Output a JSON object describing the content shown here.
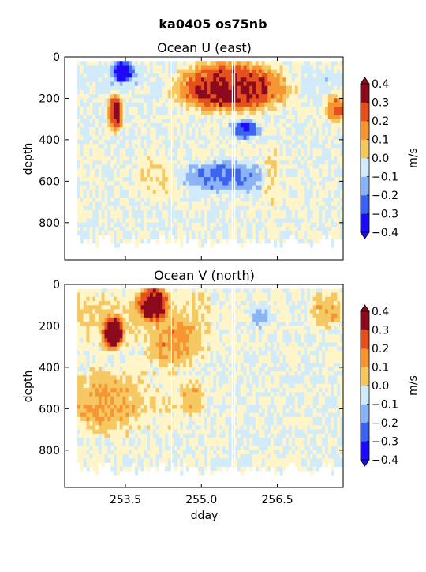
{
  "figure": {
    "suptitle": "ka0405 os75nb"
  },
  "colorbar": {
    "label": "m/s",
    "levels": [
      -0.4,
      -0.3,
      -0.2,
      -0.1,
      0.0,
      0.1,
      0.2,
      0.3,
      0.4
    ],
    "tick_labels": [
      "−0.4",
      "−0.3",
      "−0.2",
      "−0.1",
      "0.0",
      "0.1",
      "0.2",
      "0.3",
      "0.4"
    ],
    "colors": [
      "#1e0af5",
      "#3c64f0",
      "#8cb4f5",
      "#d2ebfa",
      "#fff5c8",
      "#f5c864",
      "#f59632",
      "#e6501e",
      "#8c0a1e"
    ]
  },
  "chart_data": [
    {
      "type": "heatmap",
      "title": "Ocean U (east)",
      "xlabel": "",
      "ylabel": "depth",
      "xlim": [
        252.3,
        257.8
      ],
      "ylim": [
        980,
        0
      ],
      "x_ticks": [
        253.5,
        255.0,
        256.5
      ],
      "x_tick_labels": [
        "",
        "",
        ""
      ],
      "y_ticks": [
        0,
        200,
        400,
        600,
        800
      ],
      "y_tick_labels": [
        "0",
        "200",
        "400",
        "600",
        "800"
      ],
      "features": [
        {
          "x": [
            254.5,
            256.7
          ],
          "y": [
            40,
            250
          ],
          "value": 0.45
        },
        {
          "x": [
            253.2,
            253.4
          ],
          "y": [
            190,
            350
          ],
          "value": 0.4
        },
        {
          "x": [
            253.3,
            253.6
          ],
          "y": [
            30,
            110
          ],
          "value": -0.4
        },
        {
          "x": [
            255.6,
            256.1
          ],
          "y": [
            320,
            380
          ],
          "value": -0.3
        },
        {
          "x": [
            254.7,
            256.2
          ],
          "y": [
            520,
            640
          ],
          "value": -0.2
        },
        {
          "x": [
            253.8,
            254.4
          ],
          "y": [
            480,
            680
          ],
          "value": 0.1
        },
        {
          "x": [
            256.3,
            256.5
          ],
          "y": [
            440,
            720
          ],
          "value": 0.1
        },
        {
          "x": [
            257.5,
            257.8
          ],
          "y": [
            200,
            300
          ],
          "value": 0.3
        }
      ]
    },
    {
      "type": "heatmap",
      "title": "Ocean V (north)",
      "xlabel": "dday",
      "ylabel": "depth",
      "xlim": [
        252.3,
        257.8
      ],
      "ylim": [
        980,
        0
      ],
      "x_ticks": [
        253.5,
        255.0,
        256.5
      ],
      "x_tick_labels": [
        "253.5",
        "255.0",
        "256.5"
      ],
      "y_ticks": [
        0,
        200,
        400,
        600,
        800
      ],
      "y_tick_labels": [
        "0",
        "200",
        "400",
        "600",
        "800"
      ],
      "features": [
        {
          "x": [
            253.1,
            253.4
          ],
          "y": [
            170,
            300
          ],
          "value": 0.45
        },
        {
          "x": [
            253.8,
            254.3
          ],
          "y": [
            20,
            160
          ],
          "value": 0.4
        },
        {
          "x": [
            254.0,
            255.0
          ],
          "y": [
            200,
            380
          ],
          "value": 0.2
        },
        {
          "x": [
            254.6,
            255.0
          ],
          "y": [
            480,
            620
          ],
          "value": 0.2
        },
        {
          "x": [
            252.5,
            253.7
          ],
          "y": [
            450,
            700
          ],
          "value": 0.15
        },
        {
          "x": [
            256.0,
            256.3
          ],
          "y": [
            110,
            200
          ],
          "value": -0.15
        },
        {
          "x": [
            257.2,
            257.7
          ],
          "y": [
            50,
            200
          ],
          "value": 0.15
        }
      ]
    }
  ]
}
